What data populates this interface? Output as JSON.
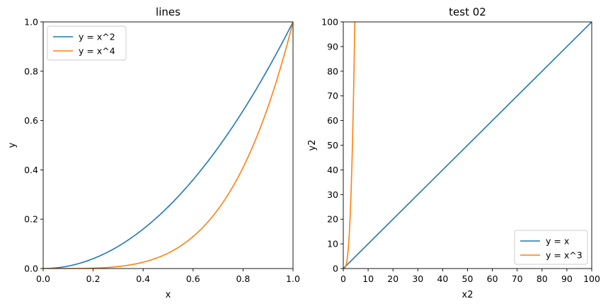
{
  "chart_data": [
    {
      "type": "line",
      "title": "lines",
      "xlabel": "x",
      "ylabel": "y",
      "xlim": [
        0,
        1
      ],
      "ylim": [
        0,
        1
      ],
      "xticks": [
        "0.0",
        "0.2",
        "0.4",
        "0.6",
        "0.8",
        "1.0"
      ],
      "yticks": [
        "0.0",
        "0.2",
        "0.4",
        "0.6",
        "0.8",
        "1.0"
      ],
      "legend_loc": "upper-left",
      "series": [
        {
          "name": "y = x^2",
          "color": "#1f77b4",
          "x": [
            0.0,
            0.1,
            0.2,
            0.3,
            0.4,
            0.5,
            0.6,
            0.7,
            0.8,
            0.9,
            1.0
          ],
          "y": [
            0.0,
            0.01,
            0.04,
            0.09,
            0.16,
            0.25,
            0.36,
            0.49,
            0.64,
            0.81,
            1.0
          ]
        },
        {
          "name": "y = x^4",
          "color": "#ff7f0e",
          "x": [
            0.0,
            0.1,
            0.2,
            0.3,
            0.4,
            0.5,
            0.6,
            0.7,
            0.8,
            0.9,
            1.0
          ],
          "y": [
            0.0,
            0.0001,
            0.0016,
            0.0081,
            0.0256,
            0.0625,
            0.1296,
            0.2401,
            0.4096,
            0.6561,
            1.0
          ]
        }
      ]
    },
    {
      "type": "line",
      "title": "test 02",
      "xlabel": "x2",
      "ylabel": "y2",
      "xlim": [
        0,
        100
      ],
      "ylim": [
        0,
        100
      ],
      "xticks": [
        "0",
        "10",
        "20",
        "30",
        "40",
        "50",
        "60",
        "70",
        "80",
        "90",
        "100"
      ],
      "yticks": [
        "0",
        "10",
        "20",
        "30",
        "40",
        "50",
        "60",
        "70",
        "80",
        "90",
        "100"
      ],
      "legend_loc": "lower-right",
      "series": [
        {
          "name": "y = x",
          "color": "#1f77b4",
          "x": [
            0,
            100
          ],
          "y": [
            0,
            100
          ]
        },
        {
          "name": "y = x^3",
          "color": "#ff7f0e",
          "x": [
            0,
            0.5,
            1,
            1.5,
            2,
            2.5,
            3,
            3.5,
            4,
            4.5,
            4.64
          ],
          "y": [
            0,
            0.125,
            1,
            3.375,
            8,
            15.625,
            27,
            42.875,
            64,
            91.125,
            100
          ]
        }
      ]
    }
  ]
}
